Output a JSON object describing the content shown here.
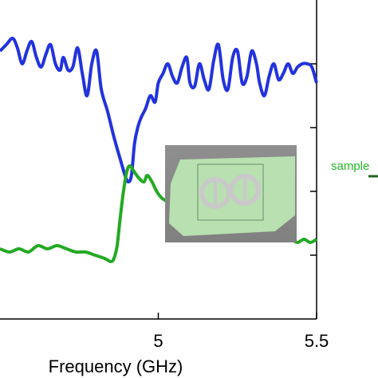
{
  "chart_data": {
    "type": "line",
    "xlabel": "Frequency (GHz)",
    "xlim": [
      4.5,
      5.5
    ],
    "x_ticks": [
      {
        "value": 5,
        "label": "5"
      },
      {
        "value": 5.5,
        "label": "5.5"
      }
    ],
    "legend": {
      "entry": "sample",
      "color": "#22bb22",
      "placement": "right"
    },
    "series": [
      {
        "color": "#2233dd",
        "points": [
          [
            4.5,
            0.84
          ],
          [
            4.52,
            0.86
          ],
          [
            4.54,
            0.88
          ],
          [
            4.555,
            0.85
          ],
          [
            4.57,
            0.8
          ],
          [
            4.585,
            0.84
          ],
          [
            4.6,
            0.87
          ],
          [
            4.615,
            0.82
          ],
          [
            4.63,
            0.79
          ],
          [
            4.645,
            0.83
          ],
          [
            4.66,
            0.86
          ],
          [
            4.675,
            0.8
          ],
          [
            4.69,
            0.78
          ],
          [
            4.7,
            0.82
          ],
          [
            4.715,
            0.78
          ],
          [
            4.73,
            0.79
          ],
          [
            4.745,
            0.85
          ],
          [
            4.76,
            0.77
          ],
          [
            4.775,
            0.7
          ],
          [
            4.79,
            0.8
          ],
          [
            4.805,
            0.84
          ],
          [
            4.82,
            0.72
          ],
          [
            4.84,
            0.65
          ],
          [
            4.86,
            0.57
          ],
          [
            4.88,
            0.5
          ],
          [
            4.895,
            0.45
          ],
          [
            4.905,
            0.43
          ],
          [
            4.915,
            0.45
          ],
          [
            4.925,
            0.55
          ],
          [
            4.935,
            0.6
          ],
          [
            4.945,
            0.63
          ],
          [
            4.96,
            0.66
          ],
          [
            4.975,
            0.7
          ],
          [
            4.99,
            0.68
          ],
          [
            5.0,
            0.74
          ],
          [
            5.015,
            0.77
          ],
          [
            5.03,
            0.8
          ],
          [
            5.045,
            0.76
          ],
          [
            5.06,
            0.74
          ],
          [
            5.075,
            0.79
          ],
          [
            5.09,
            0.82
          ],
          [
            5.1,
            0.74
          ],
          [
            5.115,
            0.73
          ],
          [
            5.13,
            0.8
          ],
          [
            5.145,
            0.75
          ],
          [
            5.16,
            0.72
          ],
          [
            5.175,
            0.81
          ],
          [
            5.19,
            0.86
          ],
          [
            5.205,
            0.75
          ],
          [
            5.22,
            0.72
          ],
          [
            5.235,
            0.82
          ],
          [
            5.25,
            0.84
          ],
          [
            5.265,
            0.74
          ],
          [
            5.28,
            0.76
          ],
          [
            5.295,
            0.84
          ],
          [
            5.31,
            0.8
          ],
          [
            5.32,
            0.74
          ],
          [
            5.335,
            0.7
          ],
          [
            5.35,
            0.76
          ],
          [
            5.365,
            0.8
          ],
          [
            5.38,
            0.75
          ],
          [
            5.395,
            0.77
          ],
          [
            5.41,
            0.8
          ],
          [
            5.425,
            0.77
          ],
          [
            5.44,
            0.79
          ],
          [
            5.455,
            0.8
          ],
          [
            5.47,
            0.8
          ],
          [
            5.485,
            0.79
          ],
          [
            5.5,
            0.74
          ]
        ]
      },
      {
        "color": "#22aa22",
        "points": [
          [
            4.5,
            0.22
          ],
          [
            4.53,
            0.21
          ],
          [
            4.56,
            0.22
          ],
          [
            4.59,
            0.21
          ],
          [
            4.62,
            0.23
          ],
          [
            4.65,
            0.22
          ],
          [
            4.68,
            0.23
          ],
          [
            4.71,
            0.22
          ],
          [
            4.74,
            0.21
          ],
          [
            4.77,
            0.21
          ],
          [
            4.8,
            0.2
          ],
          [
            4.83,
            0.19
          ],
          [
            4.85,
            0.18
          ],
          [
            4.86,
            0.19
          ],
          [
            4.87,
            0.23
          ],
          [
            4.88,
            0.32
          ],
          [
            4.89,
            0.4
          ],
          [
            4.9,
            0.46
          ],
          [
            4.91,
            0.48
          ],
          [
            4.925,
            0.46
          ],
          [
            4.94,
            0.44
          ],
          [
            4.955,
            0.43
          ],
          [
            4.965,
            0.45
          ],
          [
            4.98,
            0.43
          ],
          [
            4.995,
            0.4
          ],
          [
            5.01,
            0.38
          ],
          [
            5.025,
            0.37
          ],
          [
            5.04,
            0.36
          ],
          [
            5.055,
            0.36
          ],
          [
            5.07,
            0.35
          ],
          [
            5.085,
            0.33
          ],
          [
            5.1,
            0.34
          ],
          [
            5.115,
            0.32
          ],
          [
            5.13,
            0.33
          ],
          [
            5.145,
            0.31
          ],
          [
            5.16,
            0.31
          ],
          [
            5.175,
            0.3
          ],
          [
            5.19,
            0.29
          ],
          [
            5.205,
            0.3
          ],
          [
            5.22,
            0.29
          ],
          [
            5.235,
            0.28
          ],
          [
            5.25,
            0.29
          ],
          [
            5.265,
            0.28
          ],
          [
            5.28,
            0.27
          ],
          [
            5.3,
            0.28
          ],
          [
            5.32,
            0.26
          ],
          [
            5.34,
            0.27
          ],
          [
            5.36,
            0.26
          ],
          [
            5.38,
            0.25
          ],
          [
            5.4,
            0.26
          ],
          [
            5.42,
            0.25
          ],
          [
            5.44,
            0.24
          ],
          [
            5.46,
            0.25
          ],
          [
            5.48,
            0.24
          ],
          [
            5.5,
            0.25
          ]
        ]
      }
    ]
  }
}
